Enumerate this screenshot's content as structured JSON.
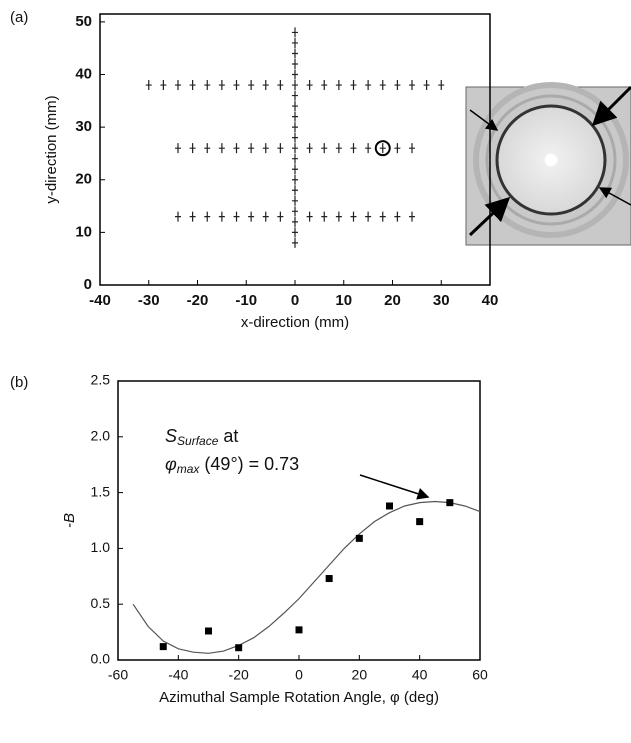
{
  "chart_data": [
    {
      "type": "scatter",
      "marker": "tick",
      "panel_label": "(a)",
      "x_label": "x-direction (mm)",
      "y_label": "y-direction (mm)",
      "x": [
        0,
        0,
        0,
        0,
        0,
        0,
        0,
        0,
        0,
        0,
        0,
        0,
        0,
        0,
        0,
        0,
        0,
        0,
        0,
        0,
        0,
        -30,
        -27,
        -24,
        -21,
        -18,
        -15,
        -12,
        -9,
        -6,
        -3,
        3,
        6,
        9,
        12,
        15,
        18,
        21,
        24,
        27,
        30,
        -24,
        -21,
        -18,
        -15,
        -12,
        -9,
        -6,
        -3,
        3,
        6,
        9,
        12,
        15,
        18,
        21,
        24,
        -24,
        -21,
        -18,
        -15,
        -12,
        -9,
        -6,
        -3,
        3,
        6,
        9,
        12,
        15,
        18,
        21,
        24
      ],
      "values": [
        8,
        10,
        12,
        14,
        16,
        18,
        20,
        22,
        24,
        26,
        28,
        30,
        32,
        34,
        36,
        38,
        40,
        42,
        44,
        46,
        48,
        38,
        38,
        38,
        38,
        38,
        38,
        38,
        38,
        38,
        38,
        38,
        38,
        38,
        38,
        38,
        38,
        38,
        38,
        38,
        38,
        26,
        26,
        26,
        26,
        26,
        26,
        26,
        26,
        26,
        26,
        26,
        26,
        26,
        26,
        26,
        26,
        13,
        13,
        13,
        13,
        13,
        13,
        13,
        13,
        13,
        13,
        13,
        13,
        13,
        13,
        13,
        13
      ],
      "highlight": {
        "x": 18,
        "y": 26
      },
      "xlim": [
        -40,
        40
      ],
      "xticks": [
        -40,
        -30,
        -20,
        -10,
        0,
        10,
        20,
        30,
        40
      ],
      "ylim": [
        0,
        51.5
      ],
      "yticks": [
        0,
        10,
        20,
        30,
        40,
        50
      ]
    },
    {
      "type": "scatter",
      "marker": "square",
      "panel_label": "(b)",
      "x_label": "Azimuthal Sample Rotation Angle, φ (deg)",
      "y_label": "-B",
      "x": [
        -45,
        -30,
        -20,
        0,
        10,
        20,
        30,
        40,
        50
      ],
      "values": [
        0.12,
        0.26,
        0.11,
        0.27,
        0.73,
        1.09,
        1.38,
        1.24,
        1.41
      ],
      "fit": {
        "x": [
          -55,
          -50,
          -45,
          -40,
          -35,
          -30,
          -25,
          -20,
          -15,
          -10,
          -5,
          0,
          5,
          10,
          15,
          20,
          25,
          30,
          35,
          40,
          45,
          50,
          55,
          60
        ],
        "values": [
          0.5,
          0.3,
          0.17,
          0.1,
          0.07,
          0.06,
          0.08,
          0.13,
          0.2,
          0.3,
          0.42,
          0.55,
          0.7,
          0.85,
          1.0,
          1.13,
          1.24,
          1.32,
          1.38,
          1.41,
          1.42,
          1.41,
          1.38,
          1.33
        ]
      },
      "annotation": {
        "symbol": "S",
        "subscript": "Surface",
        "tail": " at",
        "symbol2": "φ",
        "subscript2": "max",
        "tail2": " (49°) = 0.73"
      },
      "xlim": [
        -60,
        60
      ],
      "xticks": [
        -60,
        -40,
        -20,
        0,
        20,
        40,
        60
      ],
      "ylim": [
        0,
        2.5
      ],
      "yticks": [
        {
          "value": 0,
          "label": "0.0"
        },
        0.5,
        {
          "value": 1,
          "label": "1.0"
        },
        1.5,
        {
          "value": 2,
          "label": "2.0"
        },
        2.5
      ]
    }
  ]
}
